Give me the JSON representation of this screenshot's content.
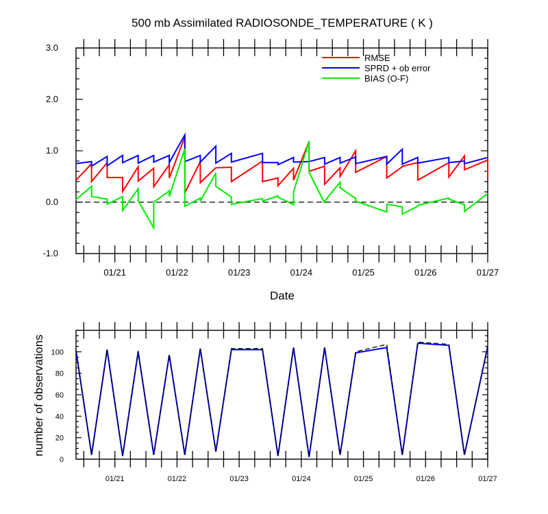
{
  "chart_data": [
    {
      "type": "line",
      "title": "500 mb Assimilated RADIOSONDE_TEMPERATURE ( K )",
      "xlabel": "Date",
      "ylabel": "",
      "x_tick_labels": [
        "01/21",
        "01/22",
        "01/23",
        "01/24",
        "01/25",
        "01/26",
        "01/27"
      ],
      "x_range": [
        "01/20 09:00",
        "01/27 00:00"
      ],
      "ylim": [
        -1.0,
        3.0
      ],
      "y_ticks": [
        -1.0,
        0.0,
        1.0,
        2.0,
        3.0
      ],
      "y_tick_labels": [
        "-1.0",
        "0.0",
        "1.0",
        "2.0",
        "3.0"
      ],
      "reference_line": 0.0,
      "legend_position": "top-right",
      "series": [
        {
          "name": "RMSE",
          "color": "#ff0000",
          "points": [
            [
              20.375,
              0.43
            ],
            [
              20.625,
              0.75
            ],
            [
              20.625,
              0.4
            ],
            [
              20.875,
              0.77
            ],
            [
              20.875,
              0.48
            ],
            [
              21.125,
              0.48
            ],
            [
              21.125,
              0.21
            ],
            [
              21.375,
              0.69
            ],
            [
              21.375,
              0.41
            ],
            [
              21.625,
              0.66
            ],
            [
              21.625,
              0.3
            ],
            [
              21.875,
              0.73
            ],
            [
              21.875,
              0.47
            ],
            [
              22.125,
              1.27
            ],
            [
              22.125,
              0.18
            ],
            [
              22.375,
              0.79
            ],
            [
              22.375,
              0.38
            ],
            [
              22.625,
              0.67
            ],
            [
              22.625,
              0.67
            ],
            [
              22.875,
              0.68
            ],
            [
              22.875,
              0.4
            ],
            [
              23.375,
              0.8
            ],
            [
              23.375,
              0.4
            ],
            [
              23.625,
              0.47
            ],
            [
              23.625,
              0.32
            ],
            [
              23.875,
              0.66
            ],
            [
              23.875,
              0.43
            ],
            [
              24.125,
              1.18
            ],
            [
              24.125,
              0.6
            ],
            [
              24.375,
              0.7
            ],
            [
              24.375,
              0.35
            ],
            [
              24.625,
              0.67
            ],
            [
              24.625,
              0.5
            ],
            [
              24.875,
              1.0
            ],
            [
              24.875,
              0.58
            ],
            [
              25.375,
              0.89
            ],
            [
              25.375,
              0.47
            ],
            [
              25.625,
              0.69
            ],
            [
              25.625,
              0.7
            ],
            [
              25.875,
              0.77
            ],
            [
              25.875,
              0.43
            ],
            [
              26.375,
              0.77
            ],
            [
              26.375,
              0.49
            ],
            [
              26.625,
              0.9
            ],
            [
              26.625,
              0.63
            ],
            [
              27.0,
              0.82
            ],
            [
              27.0,
              0.45
            ]
          ]
        },
        {
          "name": "SPRD + ob error",
          "color": "#0000ff",
          "points": [
            [
              20.375,
              0.75
            ],
            [
              20.625,
              0.79
            ],
            [
              20.625,
              0.7
            ],
            [
              20.875,
              0.89
            ],
            [
              20.875,
              0.71
            ],
            [
              21.125,
              0.91
            ],
            [
              21.125,
              0.77
            ],
            [
              21.375,
              0.91
            ],
            [
              21.375,
              0.76
            ],
            [
              21.625,
              0.91
            ],
            [
              21.625,
              0.78
            ],
            [
              21.875,
              0.91
            ],
            [
              21.875,
              0.77
            ],
            [
              22.125,
              1.31
            ],
            [
              22.125,
              0.79
            ],
            [
              22.375,
              0.91
            ],
            [
              22.375,
              0.78
            ],
            [
              22.625,
              1.09
            ],
            [
              22.625,
              0.76
            ],
            [
              22.875,
              0.95
            ],
            [
              22.875,
              0.78
            ],
            [
              23.375,
              0.95
            ],
            [
              23.375,
              0.77
            ],
            [
              23.625,
              0.77
            ],
            [
              23.625,
              0.73
            ],
            [
              23.875,
              0.87
            ],
            [
              23.875,
              0.78
            ],
            [
              24.125,
              0.79
            ],
            [
              24.125,
              0.79
            ],
            [
              24.375,
              0.87
            ],
            [
              24.375,
              0.74
            ],
            [
              24.625,
              0.87
            ],
            [
              24.625,
              0.76
            ],
            [
              24.875,
              0.88
            ],
            [
              24.875,
              0.75
            ],
            [
              25.375,
              0.89
            ],
            [
              25.375,
              0.74
            ],
            [
              25.625,
              1.03
            ],
            [
              25.625,
              0.74
            ],
            [
              25.875,
              0.87
            ],
            [
              25.875,
              0.76
            ],
            [
              26.375,
              0.87
            ],
            [
              26.375,
              0.77
            ],
            [
              26.625,
              0.8
            ],
            [
              26.625,
              0.75
            ],
            [
              27.0,
              0.87
            ]
          ]
        },
        {
          "name": "BIAS (O-F)",
          "color": "#00ee00",
          "points": [
            [
              20.375,
              0.05
            ],
            [
              20.625,
              0.31
            ],
            [
              20.625,
              0.11
            ],
            [
              20.875,
              0.06
            ],
            [
              20.875,
              -0.04
            ],
            [
              21.125,
              0.11
            ],
            [
              21.125,
              -0.16
            ],
            [
              21.375,
              0.26
            ],
            [
              21.375,
              0.03
            ],
            [
              21.625,
              -0.5
            ],
            [
              21.625,
              0.0
            ],
            [
              21.875,
              0.22
            ],
            [
              21.875,
              0.11
            ],
            [
              22.125,
              1.04
            ],
            [
              22.125,
              -0.08
            ],
            [
              22.375,
              0.08
            ],
            [
              22.375,
              0.02
            ],
            [
              22.625,
              0.57
            ],
            [
              22.625,
              0.31
            ],
            [
              22.875,
              0.1
            ],
            [
              22.875,
              -0.04
            ],
            [
              23.375,
              0.07
            ],
            [
              23.375,
              0.02
            ],
            [
              23.625,
              0.12
            ],
            [
              23.625,
              0.1
            ],
            [
              23.875,
              -0.05
            ],
            [
              23.875,
              0.2
            ],
            [
              24.125,
              1.19
            ],
            [
              24.125,
              0.58
            ],
            [
              24.375,
              -0.02
            ],
            [
              24.375,
              0.02
            ],
            [
              24.625,
              0.39
            ],
            [
              24.625,
              0.28
            ],
            [
              24.875,
              0.07
            ],
            [
              24.875,
              0.02
            ],
            [
              25.375,
              -0.19
            ],
            [
              25.375,
              -0.04
            ],
            [
              25.625,
              -0.09
            ],
            [
              25.625,
              -0.23
            ],
            [
              25.875,
              -0.08
            ],
            [
              25.875,
              -0.06
            ],
            [
              26.375,
              0.08
            ],
            [
              26.375,
              0.06
            ],
            [
              26.625,
              -0.05
            ],
            [
              26.625,
              -0.18
            ],
            [
              27.0,
              0.17
            ]
          ]
        }
      ]
    },
    {
      "type": "line",
      "title": "",
      "xlabel": "",
      "ylabel": "number of observations",
      "x_tick_labels": [
        "01/21",
        "01/22",
        "01/23",
        "01/24",
        "01/25",
        "01/26",
        "01/27"
      ],
      "x_range": [
        "01/20 09:00",
        "01/27 00:00"
      ],
      "ylim": [
        0,
        120
      ],
      "y_ticks": [
        0,
        20,
        40,
        60,
        80,
        100
      ],
      "y_tick_labels": [
        "0",
        "20",
        "40",
        "60",
        "80",
        "100"
      ],
      "series": [
        {
          "color": "#0000ff",
          "style": "solid",
          "points": [
            [
              20.375,
              101
            ],
            [
              20.625,
              4
            ],
            [
              20.875,
              102
            ],
            [
              21.125,
              3
            ],
            [
              21.375,
              100
            ],
            [
              21.625,
              4
            ],
            [
              21.875,
              97
            ],
            [
              22.125,
              4
            ],
            [
              22.375,
              103
            ],
            [
              22.625,
              7
            ],
            [
              22.875,
              102
            ],
            [
              23.375,
              102
            ],
            [
              23.625,
              3
            ],
            [
              23.875,
              104
            ],
            [
              24.125,
              2
            ],
            [
              24.375,
              104
            ],
            [
              24.625,
              4
            ],
            [
              24.875,
              99
            ],
            [
              25.375,
              104
            ],
            [
              25.625,
              4
            ],
            [
              25.875,
              108
            ],
            [
              26.375,
              106
            ],
            [
              26.625,
              4
            ],
            [
              27.0,
              105
            ]
          ]
        },
        {
          "color": "#000000",
          "style": "dashed",
          "points": [
            [
              20.375,
              101
            ],
            [
              20.625,
              4
            ],
            [
              20.875,
              102
            ],
            [
              21.125,
              3
            ],
            [
              21.375,
              101
            ],
            [
              21.625,
              4
            ],
            [
              21.875,
              97
            ],
            [
              22.125,
              4
            ],
            [
              22.375,
              103
            ],
            [
              22.625,
              7
            ],
            [
              22.875,
              103
            ],
            [
              23.375,
              103
            ],
            [
              23.625,
              3
            ],
            [
              23.875,
              104
            ],
            [
              24.125,
              2
            ],
            [
              24.375,
              104
            ],
            [
              24.625,
              4
            ],
            [
              24.875,
              100
            ],
            [
              25.375,
              107
            ],
            [
              25.625,
              4
            ],
            [
              25.875,
              109
            ],
            [
              26.375,
              107
            ],
            [
              26.625,
              4
            ],
            [
              27.0,
              105
            ]
          ]
        }
      ]
    }
  ]
}
